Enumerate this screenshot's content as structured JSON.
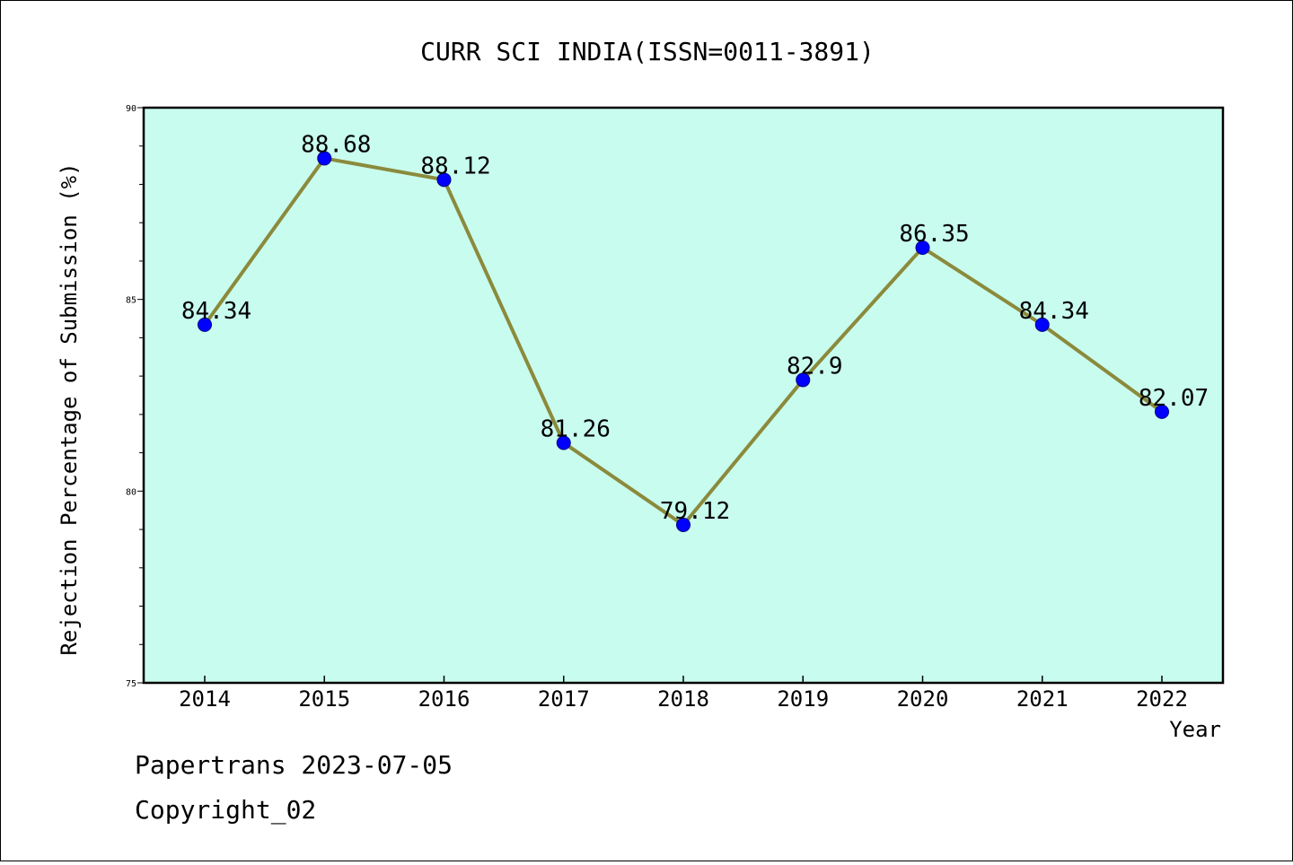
{
  "chart_data": {
    "type": "line",
    "title": "CURR SCI INDIA(ISSN=0011-3891)",
    "xlabel": "Year",
    "ylabel": "Rejection Percentage of Submission (%)",
    "categories": [
      "2014",
      "2015",
      "2016",
      "2017",
      "2018",
      "2019",
      "2020",
      "2021",
      "2022"
    ],
    "values": [
      84.34,
      88.68,
      88.12,
      81.26,
      79.12,
      82.9,
      86.35,
      84.34,
      82.07
    ],
    "data_labels": [
      "84.34",
      "88.68",
      "88.12",
      "81.26",
      "79.12",
      "82.9",
      "86.35",
      "84.34",
      "82.07"
    ],
    "ylim": [
      75,
      90
    ],
    "yticks": [
      75,
      80,
      85,
      90
    ],
    "grid": false,
    "colors": {
      "plot_background": "#c8fcee",
      "line": "#8b8a3c",
      "marker": "#0000ff"
    }
  },
  "footer": {
    "line1": "Papertrans 2023-07-05",
    "line2": "Copyright_02"
  }
}
